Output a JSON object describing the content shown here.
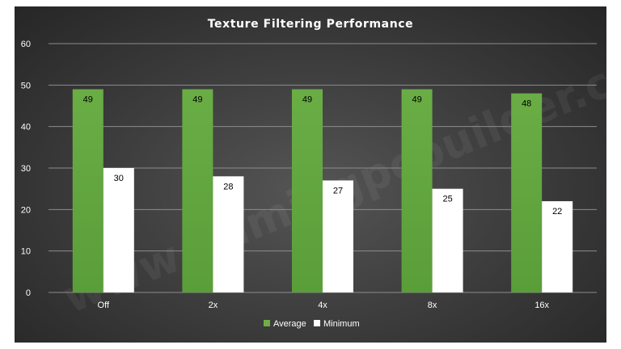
{
  "chart_data": {
    "type": "bar",
    "title": "Texture Filtering Performance",
    "categories": [
      "Off",
      "2x",
      "4x",
      "8x",
      "16x"
    ],
    "series": [
      {
        "name": "Average",
        "values": [
          49,
          49,
          49,
          49,
          48
        ],
        "color": "#70ad47"
      },
      {
        "name": "Minimum",
        "values": [
          30,
          28,
          27,
          25,
          22
        ],
        "color": "#ffffff"
      }
    ],
    "ylim": [
      0,
      60
    ],
    "yticks": [
      0,
      10,
      20,
      30,
      40,
      50,
      60
    ],
    "grid": true,
    "legend": "bottom",
    "xlabel": "",
    "ylabel": ""
  },
  "watermark": "www.gamingpcbuilder.com"
}
